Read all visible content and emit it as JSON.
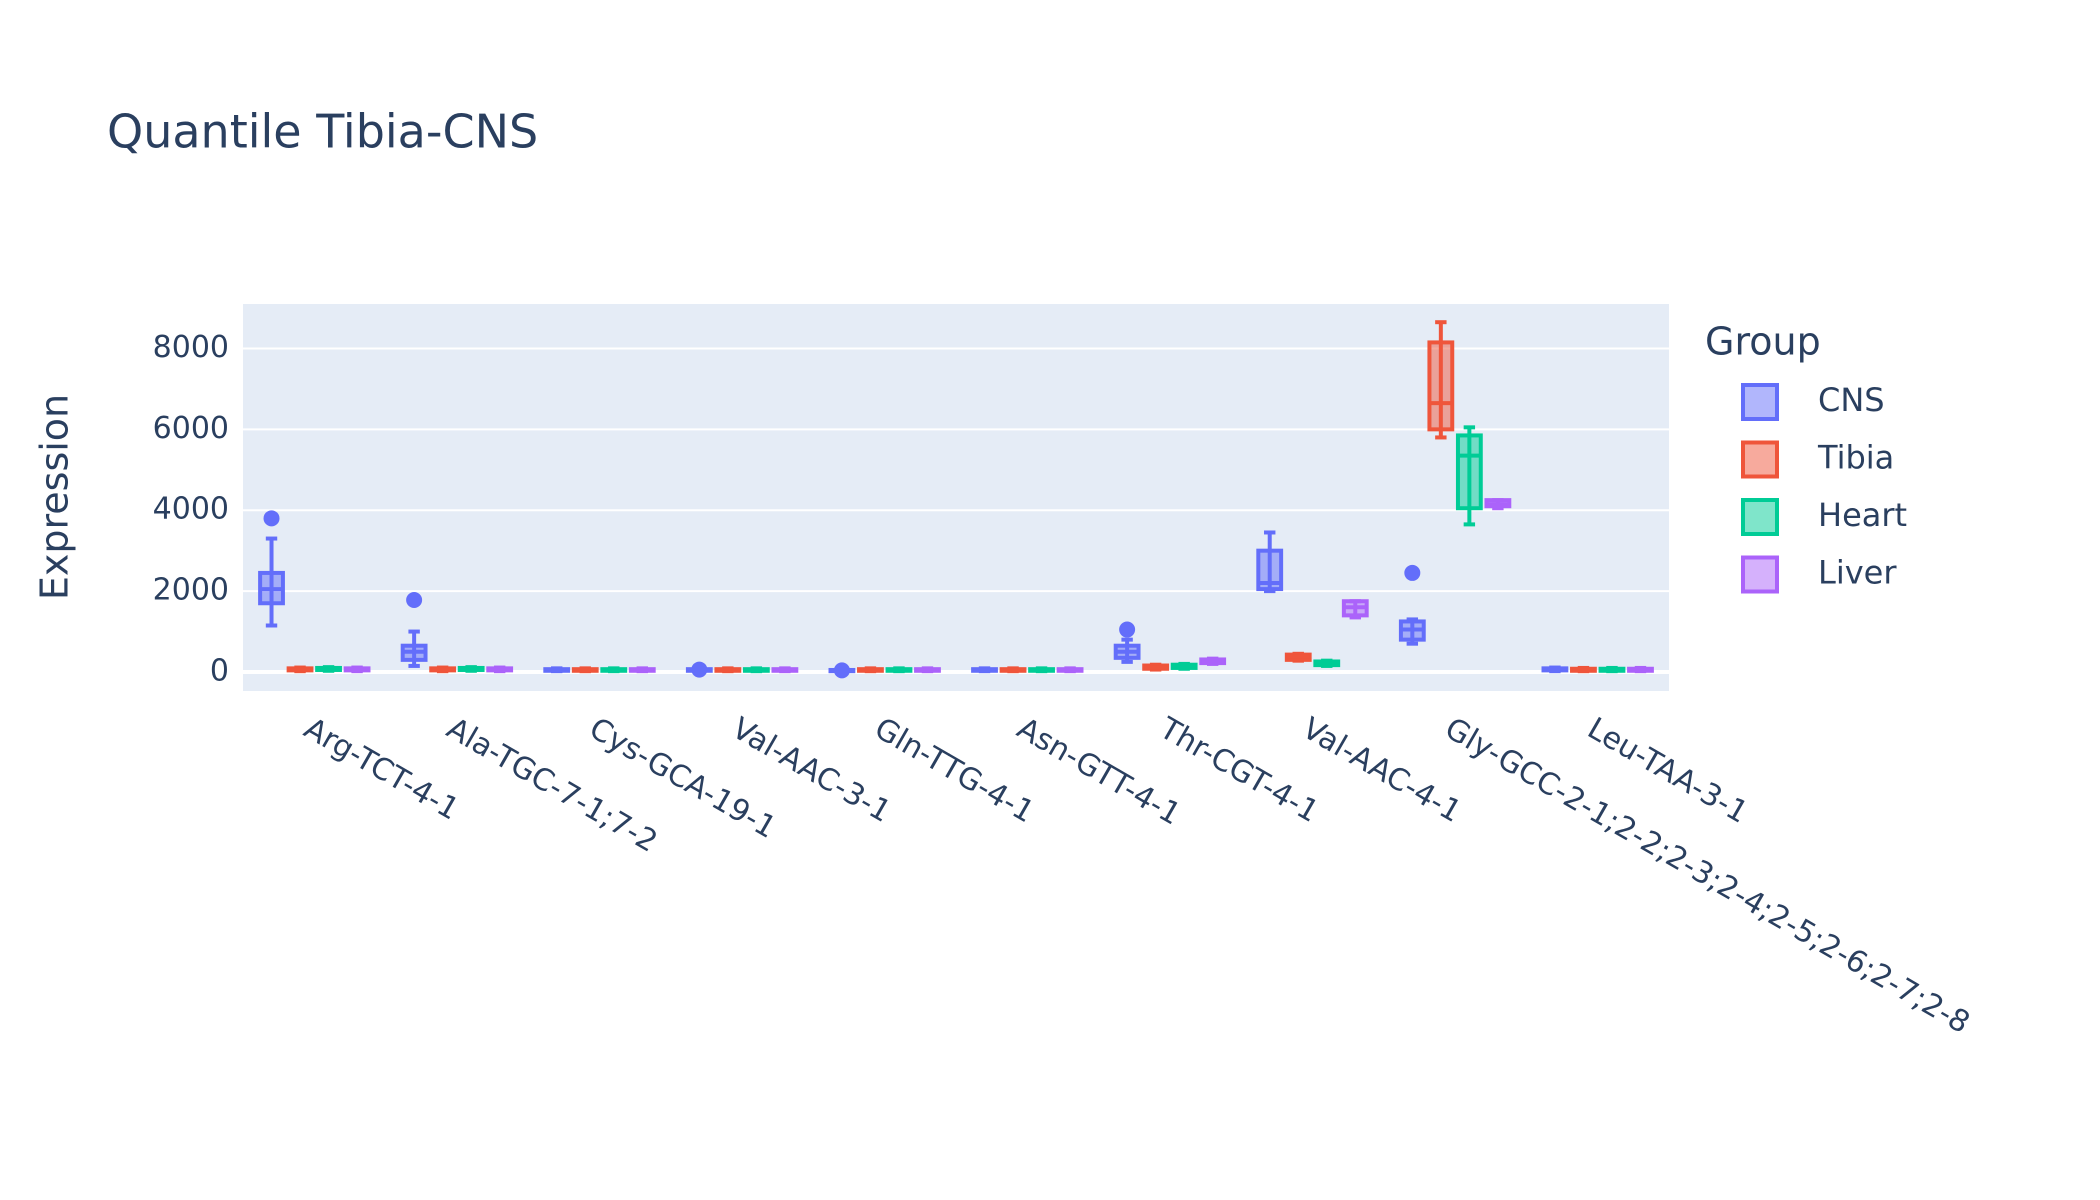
{
  "chart_data": {
    "type": "box",
    "title": "Quantile Tibia-CNS",
    "y_label": "Expression",
    "legend_title": "Group",
    "categories": [
      "Arg-TCT-4-1",
      "Ala-TGC-7-1;7-2",
      "Cys-GCA-19-1",
      "Val-AAC-3-1",
      "Gln-TTG-4-1",
      "Asn-GTT-4-1",
      "Thr-CGT-4-1",
      "Val-AAC-4-1",
      "Gly-GCC-2-1;2-2;2-3;2-4;2-5;2-6;2-7;2-8",
      "Leu-TAA-3-1"
    ],
    "ylim": [
      -470,
      9100
    ],
    "yticks": [
      0,
      2000,
      4000,
      6000,
      8000
    ],
    "grid": true,
    "series": [
      {
        "name": "CNS",
        "color": "#636efa",
        "min": [
          1150,
          150,
          20,
          20,
          10,
          20,
          250,
          2000,
          700,
          20
        ],
        "q1": [
          1700,
          300,
          30,
          30,
          20,
          30,
          350,
          2050,
          800,
          40
        ],
        "median": [
          2050,
          500,
          50,
          50,
          30,
          50,
          500,
          2200,
          1050,
          60
        ],
        "q3": [
          2450,
          650,
          70,
          70,
          50,
          70,
          650,
          3000,
          1250,
          90
        ],
        "max": [
          3300,
          1000,
          90,
          90,
          60,
          90,
          800,
          3450,
          1300,
          110
        ],
        "outliers": [
          [
            3800
          ],
          [
            1780
          ],
          [],
          [
            60
          ],
          [
            40
          ],
          [],
          [
            1050
          ],
          [],
          [
            2450
          ],
          []
        ]
      },
      {
        "name": "Tibia",
        "color": "#EF553B",
        "min": [
          20,
          20,
          20,
          20,
          20,
          20,
          60,
          280,
          5800,
          20
        ],
        "q1": [
          40,
          40,
          30,
          30,
          30,
          30,
          80,
          300,
          6000,
          30
        ],
        "median": [
          60,
          60,
          50,
          50,
          50,
          50,
          120,
          380,
          6650,
          50
        ],
        "q3": [
          90,
          90,
          70,
          70,
          70,
          70,
          160,
          430,
          8150,
          80
        ],
        "max": [
          110,
          110,
          90,
          90,
          90,
          90,
          180,
          450,
          8650,
          100
        ],
        "outliers": [
          [],
          [],
          [],
          [],
          [],
          [],
          [],
          [],
          [],
          []
        ]
      },
      {
        "name": "Heart",
        "color": "#00cc96",
        "min": [
          30,
          30,
          20,
          20,
          20,
          20,
          80,
          150,
          3650,
          20
        ],
        "q1": [
          50,
          50,
          30,
          30,
          30,
          30,
          100,
          170,
          4050,
          30
        ],
        "median": [
          70,
          70,
          50,
          50,
          50,
          50,
          140,
          220,
          5350,
          50
        ],
        "q3": [
          100,
          100,
          70,
          70,
          70,
          70,
          180,
          260,
          5850,
          80
        ],
        "max": [
          120,
          120,
          90,
          90,
          90,
          90,
          200,
          280,
          6050,
          100
        ],
        "outliers": [
          [],
          [],
          [],
          [],
          [],
          [],
          [],
          [],
          [],
          []
        ]
      },
      {
        "name": "Liver",
        "color": "#ab63fa",
        "min": [
          20,
          20,
          20,
          20,
          20,
          20,
          200,
          1350,
          4050,
          20
        ],
        "q1": [
          40,
          40,
          30,
          30,
          30,
          30,
          220,
          1400,
          4100,
          30
        ],
        "median": [
          60,
          60,
          50,
          50,
          50,
          50,
          270,
          1600,
          4150,
          50
        ],
        "q3": [
          90,
          90,
          70,
          70,
          70,
          70,
          310,
          1750,
          4250,
          80
        ],
        "max": [
          110,
          110,
          90,
          90,
          90,
          90,
          330,
          1750,
          4250,
          100
        ],
        "outliers": [
          [],
          [],
          [],
          [],
          [],
          [],
          [],
          [],
          [],
          []
        ]
      }
    ]
  }
}
